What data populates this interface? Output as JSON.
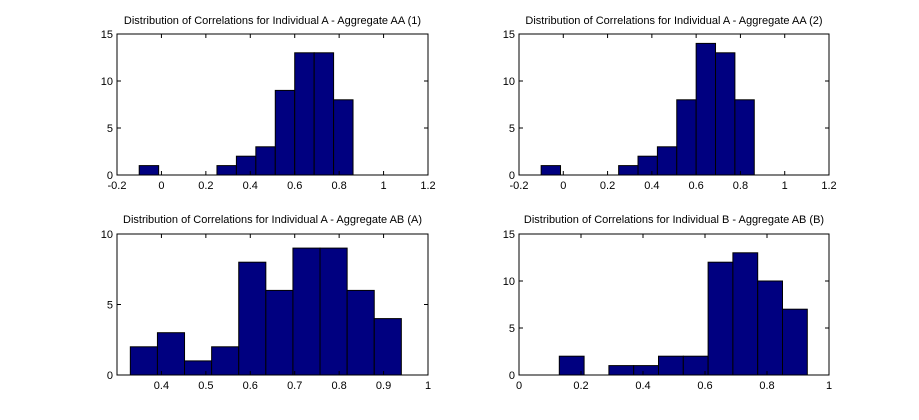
{
  "figure": {
    "background": "#ffffff",
    "bar_color": "#000080",
    "bar_edge": "#000000"
  },
  "chart_data": [
    {
      "type": "bar",
      "title": "Distribution of Correlations for Individual A - Aggregate AA (1)",
      "xlabel": "",
      "ylabel": "",
      "xlim": [
        -0.2,
        1.2
      ],
      "ylim": [
        0,
        15
      ],
      "xticks": [
        -0.2,
        0,
        0.2,
        0.4,
        0.6,
        0.8,
        1,
        1.2
      ],
      "xtick_labels": [
        "-0.2",
        "0",
        "0.2",
        "0.4",
        "0.6",
        "0.8",
        "1",
        "1.2"
      ],
      "yticks": [
        0,
        5,
        10,
        15
      ],
      "ytick_labels": [
        "0",
        "5",
        "10",
        "15"
      ],
      "bin_edges": [
        -0.1,
        -0.0125,
        0.075,
        0.1625,
        0.25,
        0.3375,
        0.425,
        0.5125,
        0.6,
        0.6875,
        0.775,
        0.8625,
        0.95
      ],
      "values": [
        1,
        0,
        0,
        0,
        1,
        2,
        3,
        9,
        13,
        13,
        8,
        0
      ]
    },
    {
      "type": "bar",
      "title": "Distribution of Correlations for Individual A - Aggregate AA (2)",
      "xlabel": "",
      "ylabel": "",
      "xlim": [
        -0.2,
        1.2
      ],
      "ylim": [
        0,
        15
      ],
      "xticks": [
        -0.2,
        0,
        0.2,
        0.4,
        0.6,
        0.8,
        1,
        1.2
      ],
      "xtick_labels": [
        "-0.2",
        "0",
        "0.2",
        "0.4",
        "0.6",
        "0.8",
        "1",
        "1.2"
      ],
      "yticks": [
        0,
        5,
        10,
        15
      ],
      "ytick_labels": [
        "0",
        "5",
        "10",
        "15"
      ],
      "bin_edges": [
        -0.1,
        -0.0125,
        0.075,
        0.1625,
        0.25,
        0.3375,
        0.425,
        0.5125,
        0.6,
        0.6875,
        0.775,
        0.8625,
        0.95
      ],
      "values": [
        1,
        0,
        0,
        0,
        1,
        2,
        3,
        8,
        14,
        13,
        8,
        0
      ]
    },
    {
      "type": "bar",
      "title": "Distribution of Correlations for Individual A - Aggregate AB (A)",
      "xlabel": "",
      "ylabel": "",
      "xlim": [
        0.3,
        1
      ],
      "ylim": [
        0,
        10
      ],
      "xticks": [
        0.4,
        0.5,
        0.6,
        0.7,
        0.8,
        0.9,
        1
      ],
      "xtick_labels": [
        "0.4",
        "0.5",
        "0.6",
        "0.7",
        "0.8",
        "0.9",
        "1"
      ],
      "yticks": [
        0,
        5,
        10
      ],
      "ytick_labels": [
        "0",
        "5",
        "10"
      ],
      "bin_edges": [
        0.33,
        0.391,
        0.452,
        0.513,
        0.574,
        0.635,
        0.696,
        0.757,
        0.818,
        0.879,
        0.94
      ],
      "values": [
        2,
        3,
        1,
        2,
        8,
        6,
        9,
        9,
        6,
        4
      ]
    },
    {
      "type": "bar",
      "title": "Distribution of Correlations for Individual B - Aggregate AB (B)",
      "xlabel": "",
      "ylabel": "",
      "xlim": [
        0,
        1
      ],
      "ylim": [
        0,
        15
      ],
      "xticks": [
        0,
        0.2,
        0.4,
        0.6,
        0.8,
        1
      ],
      "xtick_labels": [
        "0",
        "0.2",
        "0.4",
        "0.6",
        "0.8",
        "1"
      ],
      "yticks": [
        0,
        5,
        10,
        15
      ],
      "ytick_labels": [
        "0",
        "5",
        "10",
        "15"
      ],
      "bin_edges": [
        0.13,
        0.21,
        0.29,
        0.37,
        0.45,
        0.53,
        0.61,
        0.69,
        0.77,
        0.85,
        0.93
      ],
      "values": [
        2,
        0,
        1,
        1,
        2,
        2,
        12,
        13,
        10,
        7
      ]
    }
  ]
}
